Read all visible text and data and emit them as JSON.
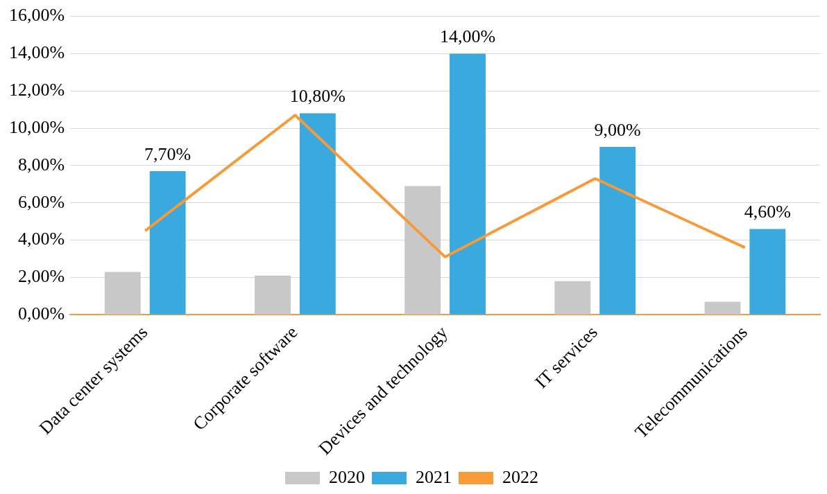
{
  "chart_data": {
    "type": "bar",
    "categories": [
      "Data center systems",
      "Corporate software",
      "Devices and technology",
      "IT services",
      "Telecommunications"
    ],
    "series": [
      {
        "name": "2020",
        "color": "#c8c8c8",
        "values": [
          2.3,
          2.1,
          6.9,
          1.8,
          0.7
        ]
      },
      {
        "name": "2021",
        "color": "#3aa9dd",
        "values": [
          7.7,
          10.8,
          14.0,
          9.0,
          4.6
        ],
        "value_labels": [
          "7,70%",
          "10,80%",
          "14,00%",
          "9,00%",
          "4,60%"
        ]
      },
      {
        "name": "2022",
        "type": "line",
        "color": "#f79a3a",
        "values": [
          4.5,
          10.7,
          3.1,
          7.3,
          3.6
        ]
      }
    ],
    "ylim": [
      0,
      16
    ],
    "yticks": [
      {
        "value": 0,
        "label": "0,00%"
      },
      {
        "value": 2,
        "label": "2,00%"
      },
      {
        "value": 4,
        "label": "4,00%"
      },
      {
        "value": 6,
        "label": "6,00%"
      },
      {
        "value": 8,
        "label": "8,00%"
      },
      {
        "value": 10,
        "label": "10,00%"
      },
      {
        "value": 12,
        "label": "12,00%"
      },
      {
        "value": 14,
        "label": "14,00%"
      },
      {
        "value": 16,
        "label": "16,00%"
      }
    ],
    "grid": "y",
    "legend": "bottom",
    "marker": "none"
  }
}
